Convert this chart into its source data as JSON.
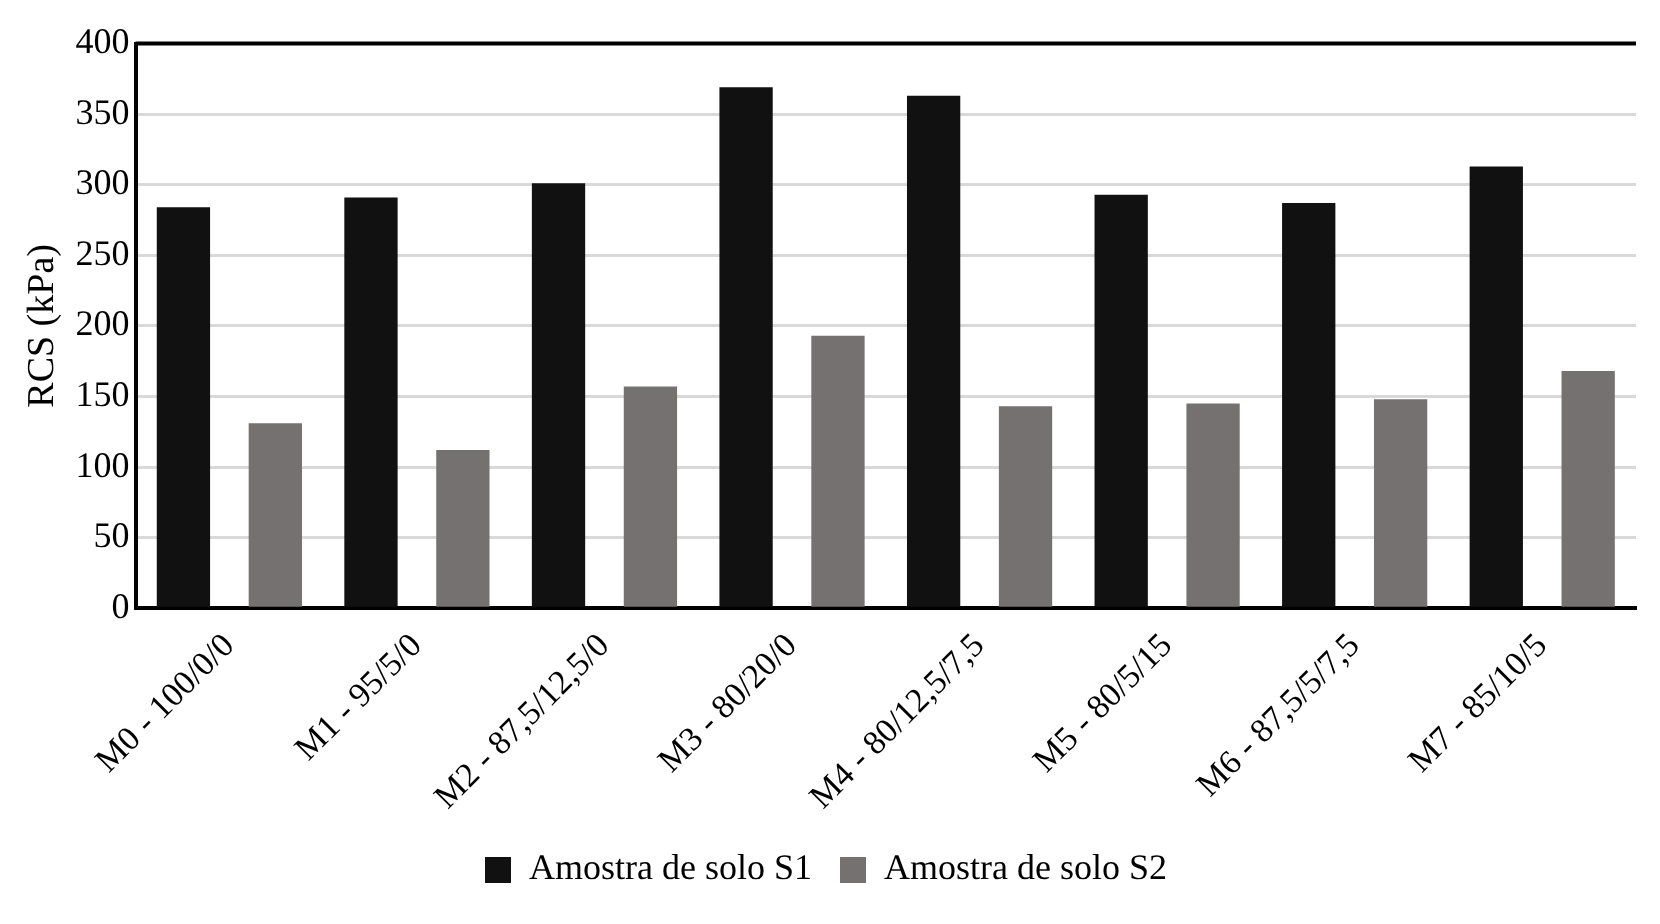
{
  "chart_data": {
    "type": "bar",
    "ylabel": "RCS (kPa)",
    "categories": [
      "M0 - 100/0/0",
      "M1 - 95/5/0",
      "M2 - 87,5/12,5/0",
      "M3 - 80/20/0",
      "M4 - 80/12,5/7,5",
      "M5 - 80/5/15",
      "M6 - 87,5/5/7,5",
      "M7 - 85/10/5"
    ],
    "series": [
      {
        "name": "Amostra de solo S1",
        "color": "#111111",
        "values": [
          284,
          291,
          301,
          369,
          363,
          293,
          287,
          313
        ]
      },
      {
        "name": "Amostra de solo S2",
        "color": "#767171",
        "values": [
          131,
          112,
          157,
          193,
          143,
          145,
          148,
          168
        ]
      }
    ],
    "ylim": [
      0,
      400
    ],
    "yticks": [
      0,
      50,
      100,
      150,
      200,
      250,
      300,
      350,
      400
    ],
    "grid": "y",
    "legend": "bottom"
  }
}
